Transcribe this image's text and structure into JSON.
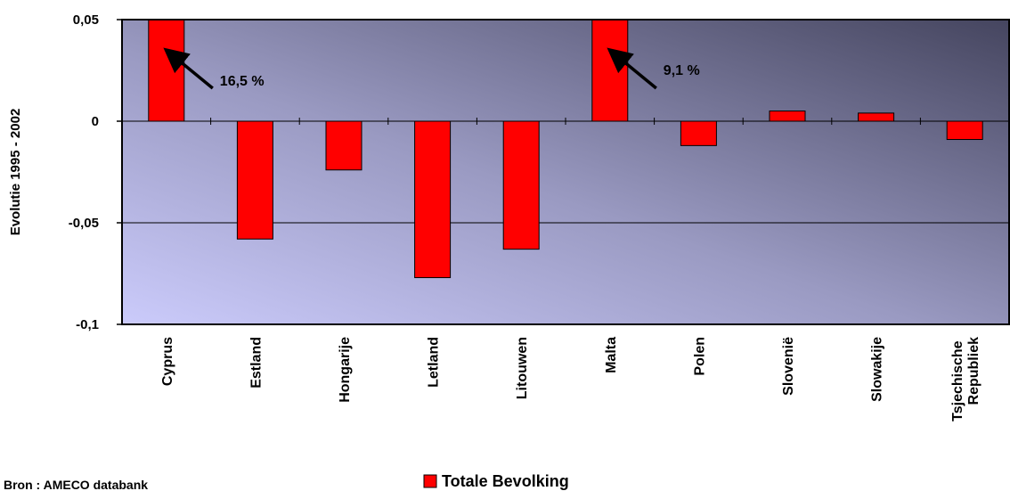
{
  "chart_data": {
    "type": "bar",
    "y_label": "Evolutie 1995 - 2002",
    "categories": [
      "Cyprus",
      "Estland",
      "Hongarije",
      "Letland",
      "Litouwen",
      "Malta",
      "Polen",
      "Slovenië",
      "Slowakije",
      "Tsjechische Republiek"
    ],
    "series": [
      {
        "name": "Totale Bevolking",
        "color": "#ff0000",
        "values": [
          0.165,
          -0.058,
          -0.024,
          -0.077,
          -0.063,
          0.091,
          -0.012,
          0.005,
          0.004,
          -0.009
        ],
        "value_labels": [
          "16,5 %",
          null,
          null,
          null,
          null,
          "9,1 %",
          null,
          null,
          null,
          null
        ]
      }
    ],
    "ylim": [
      -0.1,
      0.05
    ],
    "yticks": [
      {
        "value": 0.05,
        "label": "0,05"
      },
      0,
      {
        "value": -0.05,
        "label": "-0,05"
      },
      {
        "value": -0.1,
        "label": "-0,1"
      }
    ],
    "grid": true,
    "legend": "bottom",
    "source": "Bron : AMECO databank"
  }
}
